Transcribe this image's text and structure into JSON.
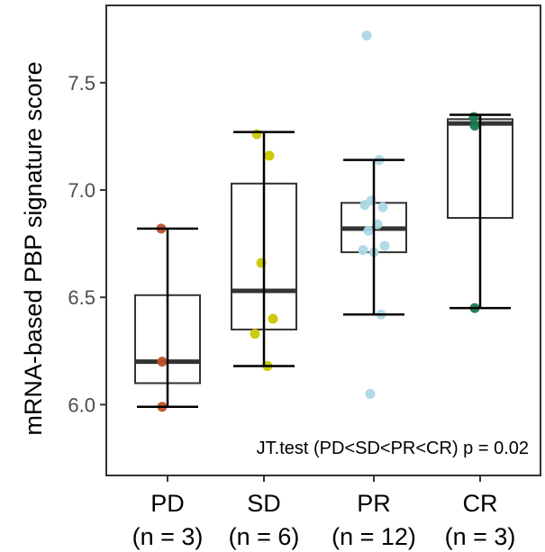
{
  "chart_data": {
    "type": "box",
    "ylabel": "mRNA-based PBP signature score",
    "ylim": [
      5.67,
      7.86
    ],
    "yticks": [
      6.0,
      6.5,
      7.0,
      7.5
    ],
    "ytick_labels": [
      "6.0",
      "6.5",
      "7.0",
      "7.5"
    ],
    "grid": false,
    "annotation": "JT.test (PD<SD<PR<CR) p = 0.02",
    "groups": [
      {
        "name": "PD",
        "n_label": "(n = 3)",
        "color": "#c1502a",
        "whisker_low": 5.99,
        "q1": 6.1,
        "median": 6.2,
        "q3": 6.51,
        "whisker_high": 6.82,
        "points": [
          6.82,
          6.2,
          5.99
        ]
      },
      {
        "name": "SD",
        "n_label": "(n = 6)",
        "color": "#c8c800",
        "whisker_low": 6.18,
        "q1": 6.35,
        "median": 6.53,
        "q3": 7.03,
        "whisker_high": 7.27,
        "points": [
          7.26,
          7.16,
          6.66,
          6.4,
          6.33,
          6.18
        ]
      },
      {
        "name": "PR",
        "n_label": "(n = 12)",
        "color": "#add8e6",
        "whisker_low": 6.42,
        "q1": 6.71,
        "median": 6.82,
        "q3": 6.94,
        "whisker_high": 7.14,
        "points": [
          7.72,
          7.14,
          6.95,
          6.92,
          6.93,
          6.84,
          6.81,
          6.74,
          6.71,
          6.72,
          6.42,
          6.05
        ]
      },
      {
        "name": "CR",
        "n_label": "(n = 3)",
        "color": "#1a7a50",
        "whisker_low": 6.45,
        "q1": 6.87,
        "median": 7.31,
        "q3": 7.33,
        "whisker_high": 7.35,
        "points": [
          7.34,
          7.3,
          6.45
        ]
      }
    ]
  }
}
